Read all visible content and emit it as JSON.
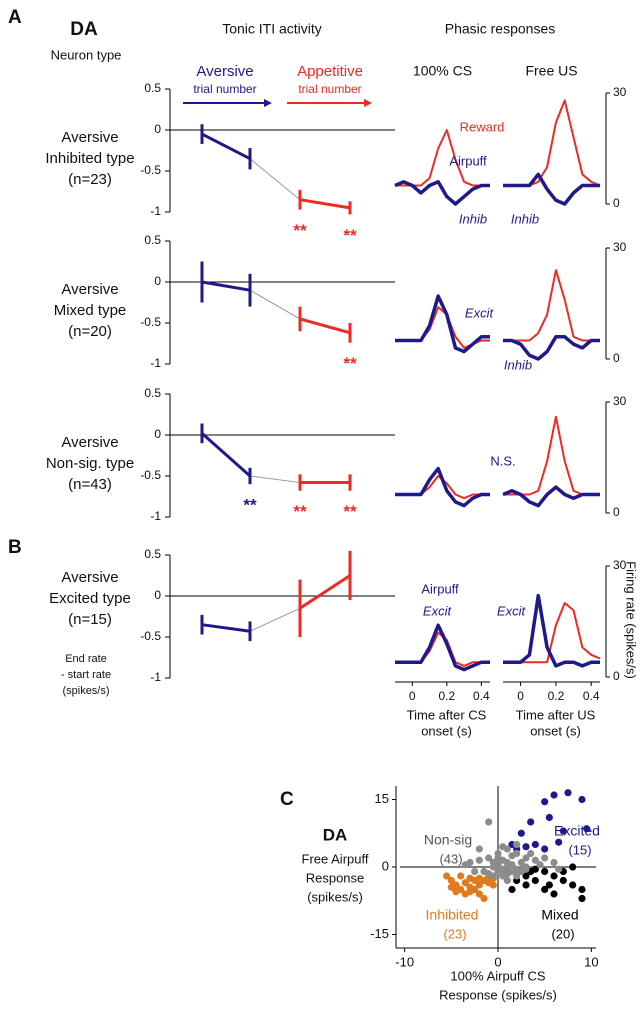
{
  "panel_labels": [
    "A",
    "B",
    "C"
  ],
  "header": {
    "species": "DA",
    "neuron_type": "Neuron type",
    "phasic_title": "Phasic responses"
  },
  "chart_data": [
    {
      "type": "errorline",
      "title": "Tonic ITI activity",
      "label_lines": [
        "Aversive",
        "Inhibited type",
        "(n=23)"
      ],
      "ylim": [
        -1,
        0.5
      ],
      "yticks": [
        -1,
        -0.5,
        0,
        0.5
      ],
      "series": [
        {
          "name": "Aversive",
          "sublabel": "trial number",
          "color": "#1f1a8a",
          "values": [
            -0.05,
            -0.35
          ],
          "errors": [
            0.12,
            0.13
          ],
          "significance": [
            null,
            null
          ]
        },
        {
          "name": "Appetitive",
          "sublabel": "trial number",
          "color": "#ee2a24",
          "values": [
            -0.85,
            -0.95
          ],
          "errors": [
            0.12,
            0.08
          ],
          "significance": [
            "**",
            "**"
          ]
        }
      ]
    },
    {
      "type": "errorline",
      "label_lines": [
        "Aversive",
        "Mixed type",
        "(n=20)"
      ],
      "ylim": [
        -1,
        0.5
      ],
      "yticks": [
        -1,
        -0.5,
        0,
        0.5
      ],
      "series": [
        {
          "color": "#1f1a8a",
          "values": [
            0,
            -0.1
          ],
          "errors": [
            0.25,
            0.2
          ],
          "significance": [
            null,
            null
          ]
        },
        {
          "color": "#ee2a24",
          "values": [
            -0.45,
            -0.62
          ],
          "errors": [
            0.15,
            0.12
          ],
          "significance": [
            null,
            "**"
          ]
        }
      ]
    },
    {
      "type": "errorline",
      "label_lines": [
        "Aversive",
        "Non-sig. type",
        "(n=43)"
      ],
      "ylim": [
        -1,
        0.5
      ],
      "yticks": [
        -1,
        -0.5,
        0,
        0.5
      ],
      "series": [
        {
          "color": "#1f1a8a",
          "values": [
            0.02,
            -0.5
          ],
          "errors": [
            0.12,
            0.1
          ],
          "significance": [
            null,
            "**"
          ]
        },
        {
          "color": "#ee2a24",
          "values": [
            -0.58,
            -0.58
          ],
          "errors": [
            0.1,
            0.1
          ],
          "significance": [
            "**",
            "**"
          ]
        }
      ]
    },
    {
      "type": "errorline",
      "label_lines": [
        "Aversive",
        "Excited type",
        "(n=15)"
      ],
      "ylabel_lines": [
        "End rate",
        "- start rate",
        "(spikes/s)"
      ],
      "ylim": [
        -1,
        0.5
      ],
      "yticks": [
        -1,
        -0.5,
        0,
        0.5
      ],
      "series": [
        {
          "color": "#1f1a8a",
          "values": [
            -0.35,
            -0.43
          ],
          "errors": [
            0.12,
            0.12
          ],
          "significance": [
            null,
            null
          ]
        },
        {
          "color": "#ee2a24",
          "values": [
            -0.15,
            0.25
          ],
          "errors": [
            0.35,
            0.3
          ],
          "significance": [
            null,
            null
          ]
        }
      ]
    },
    {
      "type": "line",
      "title": "100% CS",
      "xlim": [
        -0.1,
        0.45
      ],
      "ylim": [
        0,
        30
      ],
      "x": [
        -0.1,
        -0.05,
        0,
        0.05,
        0.1,
        0.15,
        0.2,
        0.25,
        0.3,
        0.35,
        0.4,
        0.45
      ],
      "series": [
        {
          "color": "#ee2a24",
          "values": [
            5,
            5,
            5,
            5,
            7,
            15,
            20,
            12,
            6,
            5,
            5,
            5
          ]
        },
        {
          "color": "#1f1a8a",
          "values": [
            5,
            6,
            5,
            3,
            5,
            6,
            2,
            0,
            2,
            4,
            5,
            5
          ]
        }
      ],
      "annotations": [
        {
          "text": "Reward",
          "color": "#ee2a24",
          "style": "normal"
        },
        {
          "text": "Airpuff",
          "color": "#1f1a8a",
          "style": "normal"
        },
        {
          "text": "Inhib",
          "color": "#1f1a8a",
          "style": "italic"
        }
      ]
    },
    {
      "type": "line",
      "title": "Free US",
      "xlim": [
        -0.1,
        0.45
      ],
      "ylim": [
        0,
        30
      ],
      "yticks": [
        0,
        30
      ],
      "x": [
        -0.1,
        -0.05,
        0,
        0.05,
        0.1,
        0.15,
        0.2,
        0.25,
        0.3,
        0.35,
        0.4,
        0.45
      ],
      "series": [
        {
          "color": "#ee2a24",
          "values": [
            5,
            5,
            5,
            5,
            6,
            10,
            22,
            28,
            18,
            8,
            6,
            5
          ]
        },
        {
          "color": "#1f1a8a",
          "values": [
            5,
            5,
            5,
            5,
            8,
            4,
            1,
            0,
            3,
            5,
            5,
            5
          ]
        }
      ],
      "annotations": [
        {
          "text": "Inhib",
          "color": "#1f1a8a",
          "style": "italic"
        }
      ]
    },
    {
      "type": "line",
      "xlim": [
        -0.1,
        0.45
      ],
      "ylim": [
        0,
        30
      ],
      "x": [
        -0.1,
        -0.05,
        0,
        0.05,
        0.1,
        0.15,
        0.2,
        0.25,
        0.3,
        0.35,
        0.4,
        0.45
      ],
      "series": [
        {
          "color": "#ee2a24",
          "values": [
            5,
            5,
            5,
            5,
            8,
            14,
            12,
            6,
            3,
            4,
            5,
            5
          ]
        },
        {
          "color": "#1f1a8a",
          "values": [
            5,
            5,
            5,
            5,
            9,
            17,
            12,
            3,
            2,
            4,
            6,
            6
          ]
        }
      ],
      "annotations": [
        {
          "text": "Excit",
          "color": "#1f1a8a",
          "style": "italic"
        }
      ]
    },
    {
      "type": "line",
      "xlim": [
        -0.1,
        0.45
      ],
      "ylim": [
        0,
        30
      ],
      "yticks": [
        0,
        30
      ],
      "x": [
        -0.1,
        -0.05,
        0,
        0.05,
        0.1,
        0.15,
        0.2,
        0.25,
        0.3,
        0.35,
        0.4,
        0.45
      ],
      "series": [
        {
          "color": "#ee2a24",
          "values": [
            5,
            5,
            5,
            5,
            7,
            12,
            24,
            16,
            6,
            5,
            5,
            5
          ]
        },
        {
          "color": "#1f1a8a",
          "values": [
            5,
            5,
            4,
            1,
            0,
            2,
            6,
            6,
            4,
            3,
            5,
            5
          ]
        }
      ],
      "annotations": [
        {
          "text": "Inhib",
          "color": "#1f1a8a",
          "style": "italic"
        }
      ]
    },
    {
      "type": "line",
      "xlim": [
        -0.1,
        0.45
      ],
      "ylim": [
        0,
        30
      ],
      "x": [
        -0.1,
        -0.05,
        0,
        0.05,
        0.1,
        0.15,
        0.2,
        0.25,
        0.3,
        0.35,
        0.4,
        0.45
      ],
      "series": [
        {
          "color": "#ee2a24",
          "values": [
            5,
            5,
            5,
            5,
            7,
            10,
            8,
            5,
            4,
            5,
            5,
            5
          ]
        },
        {
          "color": "#1f1a8a",
          "values": [
            5,
            5,
            5,
            5,
            9,
            12,
            6,
            3,
            2,
            4,
            5,
            5
          ]
        }
      ],
      "annotations": [
        {
          "text": "N.S.",
          "color": "#1f1a8a",
          "style": "normal"
        }
      ]
    },
    {
      "type": "line",
      "xlim": [
        -0.1,
        0.45
      ],
      "ylim": [
        0,
        30
      ],
      "yticks": [
        0,
        30
      ],
      "x": [
        -0.1,
        -0.05,
        0,
        0.05,
        0.1,
        0.15,
        0.2,
        0.25,
        0.3,
        0.35,
        0.4,
        0.45
      ],
      "series": [
        {
          "color": "#ee2a24",
          "values": [
            5,
            5,
            5,
            5,
            6,
            14,
            26,
            14,
            6,
            5,
            5,
            5
          ]
        },
        {
          "color": "#1f1a8a",
          "values": [
            5,
            6,
            5,
            3,
            2,
            5,
            7,
            5,
            4,
            5,
            5,
            5
          ]
        }
      ]
    },
    {
      "type": "line",
      "xlim": [
        -0.1,
        0.45
      ],
      "ylim": [
        0,
        30
      ],
      "xticks": [
        0,
        0.2,
        0.4
      ],
      "xlabel_lines": [
        "Time after CS",
        "onset (s)"
      ],
      "x": [
        -0.1,
        -0.05,
        0,
        0.05,
        0.1,
        0.15,
        0.2,
        0.25,
        0.3,
        0.35,
        0.4,
        0.45
      ],
      "series": [
        {
          "color": "#ee2a24",
          "values": [
            4,
            4,
            4,
            4,
            7,
            12,
            10,
            4,
            3,
            4,
            4,
            4
          ]
        },
        {
          "color": "#1f1a8a",
          "values": [
            4,
            4,
            4,
            4,
            8,
            14,
            9,
            3,
            2,
            3,
            4,
            4
          ]
        }
      ],
      "annotations": [
        {
          "text": "Airpuff",
          "color": "#1f1a8a",
          "style": "normal"
        },
        {
          "text": "Excit",
          "color": "#1f1a8a",
          "style": "italic"
        }
      ]
    },
    {
      "type": "line",
      "xlim": [
        -0.1,
        0.45
      ],
      "ylim": [
        0,
        30
      ],
      "yticks": [
        0,
        30
      ],
      "xticks": [
        0,
        0.2,
        0.4
      ],
      "xlabel_lines": [
        "Time after US",
        "onset (s)"
      ],
      "ylabel": "Firing rate (spikes/s)",
      "x": [
        -0.1,
        -0.05,
        0,
        0.05,
        0.1,
        0.15,
        0.2,
        0.25,
        0.3,
        0.35,
        0.4,
        0.45
      ],
      "series": [
        {
          "color": "#ee2a24",
          "values": [
            4,
            4,
            4,
            4,
            4,
            4,
            14,
            20,
            18,
            8,
            6,
            5
          ]
        },
        {
          "color": "#1f1a8a",
          "values": [
            4,
            4,
            4,
            6,
            22,
            8,
            3,
            4,
            4,
            3,
            4,
            4
          ]
        }
      ],
      "annotations": [
        {
          "text": "Excit",
          "color": "#1f1a8a",
          "style": "italic"
        }
      ]
    },
    {
      "type": "scatter",
      "title": "DA",
      "ylabel_lines": [
        "Free Airpuff",
        "Response",
        "(spikes/s)"
      ],
      "xlabel_lines": [
        "100% Airpuff CS",
        "Response (spikes/s)"
      ],
      "xlim": [
        -10.5,
        10.5
      ],
      "xticks": [
        -10,
        0,
        10
      ],
      "ylim": [
        -18,
        18
      ],
      "yticks": [
        -15,
        0,
        15
      ],
      "series": [
        {
          "name": "Excited",
          "n_label": "(15)",
          "color": "#1f1a8a",
          "x": [
            6,
            7.5,
            9,
            5,
            9.5,
            5.5,
            3.5,
            2.5,
            7,
            4,
            3,
            5,
            1.5,
            2,
            6.5
          ],
          "y": [
            16,
            16.5,
            15,
            14.5,
            8.5,
            11,
            10,
            7.5,
            8,
            5,
            4.5,
            4,
            5,
            4,
            5.5
          ]
        },
        {
          "name": "Mixed",
          "n_label": "(20)",
          "color": "#000000",
          "x": [
            1,
            2,
            3,
            4,
            5,
            6,
            7,
            8,
            9,
            9,
            5,
            6,
            3,
            2,
            4,
            1.5,
            7,
            8,
            5.5,
            3.5
          ],
          "y": [
            -1,
            -1.5,
            -2,
            -0.5,
            -1,
            -2,
            -3,
            -4,
            -5,
            -7,
            -5,
            -6,
            -4,
            -3,
            -3,
            -5,
            -1,
            0,
            -4,
            -1
          ]
        },
        {
          "name": "Inhibited",
          "n_label": "(23)",
          "color": "#e07a1c",
          "x": [
            -5,
            -4.5,
            -4,
            -3.5,
            -3,
            -2.5,
            -2,
            -1.5,
            -1,
            -0.5,
            -3,
            -4,
            -5,
            -2,
            -1.5,
            -3.5,
            -4.5,
            -2.5,
            -1,
            -0.5,
            -3,
            -2,
            -5.5
          ],
          "y": [
            -3,
            -4,
            -5,
            -3.5,
            -4.5,
            -5,
            -4,
            -3,
            -3.5,
            -2.5,
            -2.5,
            -2,
            -4.5,
            -6,
            -7,
            -6,
            -5.5,
            -3,
            -2,
            -4,
            -5.5,
            -2.5,
            -2
          ]
        },
        {
          "name": "Non-sig",
          "n_label": "(43)",
          "color": "#8c8c8c",
          "x": [
            -1,
            -2,
            -3,
            -2,
            -1,
            0,
            0.5,
            1,
            1.5,
            2,
            -0.5,
            0,
            0.5,
            1,
            1.5,
            2,
            2.5,
            3,
            3.5,
            4,
            4.5,
            5,
            6,
            6.5,
            -1.5,
            -0.5,
            0,
            0.5,
            1,
            1.5,
            2,
            2.5,
            3,
            -1,
            0,
            1,
            2,
            -0.5,
            0.5,
            1,
            3,
            -2.5,
            -3.5
          ],
          "y": [
            10,
            4,
            1,
            1.5,
            2,
            3,
            4.5,
            1,
            2.5,
            3,
            0,
            -1,
            -2,
            -3,
            -1,
            -0.5,
            1,
            2,
            3,
            1.5,
            0.5,
            2,
            1,
            -0.5,
            -1,
            1,
            0.5,
            -0.5,
            0,
            0.5,
            -2,
            -1,
            -0.5,
            -1.5,
            2,
            4,
            5,
            -2,
            1.5,
            -1.5,
            0,
            -1,
            0.5
          ]
        }
      ]
    }
  ]
}
